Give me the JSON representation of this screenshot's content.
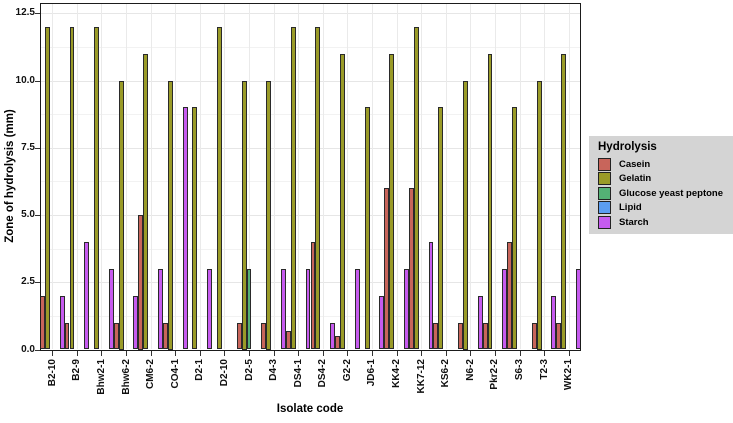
{
  "chart_data": {
    "type": "bar",
    "title": "",
    "xlabel": "Isolate code",
    "ylabel": "Zone of hydrolysis (mm)",
    "ylim": [
      0,
      12.5
    ],
    "ytick_values": [
      0,
      2.5,
      5,
      7.5,
      10,
      12.5
    ],
    "ytick_labels": [
      "0.0",
      "2.5",
      "5.0",
      "7.5",
      "10.0",
      "12.5"
    ],
    "minor_ytick_values": [
      1.25,
      3.75,
      6.25,
      8.75,
      11.25
    ],
    "grid": true,
    "legend": {
      "title": "Hydrolysis",
      "position": "right"
    },
    "categories": [
      "B2-10",
      "B2-9",
      "Bhw2-1",
      "Bhw6-2",
      "CM6-2",
      "CO4-1",
      "D2-1",
      "D2-10",
      "D2-5",
      "D4-3",
      "DS4-1",
      "DS4-2",
      "G2-2",
      "JD6-1",
      "KK4-2",
      "KK7-12",
      "KS6-2",
      "N6-2",
      "Pkr2-2",
      "S6-3",
      "T2-3",
      "WK2-1"
    ],
    "series": [
      {
        "name": "Casein",
        "color": "#c8655b",
        "values": [
          2,
          1,
          null,
          1,
          5,
          1,
          null,
          null,
          1,
          1,
          0.7,
          4,
          0.5,
          null,
          6,
          6,
          1,
          1,
          1,
          4,
          1,
          1
        ]
      },
      {
        "name": "Gelatin",
        "color": "#9a9b28",
        "values": [
          12,
          12,
          12,
          10,
          11,
          10,
          9,
          12,
          10,
          10,
          12,
          12,
          11,
          9,
          11,
          12,
          9,
          10,
          11,
          9,
          10,
          11
        ]
      },
      {
        "name": "Glucose yeast peptone",
        "color": "#54b175",
        "values": [
          null,
          null,
          null,
          null,
          null,
          null,
          null,
          null,
          3,
          null,
          null,
          null,
          null,
          null,
          null,
          null,
          null,
          null,
          null,
          null,
          null,
          null
        ]
      },
      {
        "name": "Lipid",
        "color": "#5b9df1",
        "values": [
          null,
          null,
          null,
          null,
          null,
          null,
          null,
          null,
          null,
          null,
          null,
          null,
          null,
          null,
          null,
          null,
          null,
          null,
          null,
          null,
          null,
          null
        ]
      },
      {
        "name": "Starch",
        "color": "#c65bef",
        "values": [
          2,
          4,
          3,
          2,
          3,
          9,
          3,
          null,
          null,
          3,
          3,
          1,
          3,
          2,
          3,
          4,
          null,
          2,
          3,
          null,
          2,
          3
        ]
      }
    ]
  },
  "colors": {
    "panel_border": "#1b1b1b",
    "bar_border": "#2a2a2a",
    "grid_major": "#e6e6e6",
    "grid_minor": "#f2f2f2",
    "grid_vertical": "#eaeaea",
    "legend_bg": "#d4d4d4",
    "axis_tick": "#333333"
  }
}
